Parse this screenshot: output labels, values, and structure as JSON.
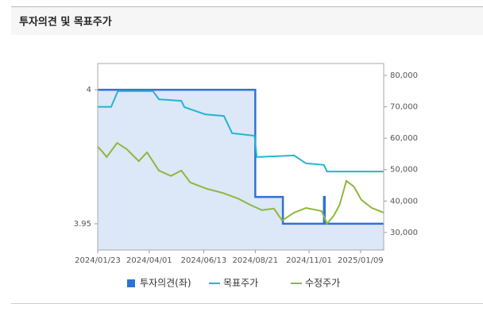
{
  "header": {
    "title": "투자의견 및 목표주가"
  },
  "chart_data": {
    "type": "line",
    "xlim": [
      "2024/01/23",
      "2025/02/09"
    ],
    "xticks": [
      "2024/01/23",
      "2024/04/01",
      "2024/06/13",
      "2024/08/21",
      "2024/11/01",
      "2025/01/09"
    ],
    "ylim": [
      3.9402,
      4.0098
    ],
    "yticks": [
      3.95,
      4
    ],
    "y2lim": [
      24400,
      83800
    ],
    "y2ticks": [
      {
        "value": 30000,
        "label": "30,000"
      },
      {
        "value": 40000,
        "label": "40,000"
      },
      {
        "value": 50000,
        "label": "50,000"
      },
      {
        "value": 60000,
        "label": "60,000"
      },
      {
        "value": 70000,
        "label": "70,000"
      },
      {
        "value": 80000,
        "label": "80,000"
      }
    ],
    "series": [
      {
        "name": "투자의견(좌)",
        "color": "#2f72d6",
        "fill": "#dce7f7",
        "axis": "y",
        "x": [
          "2024/01/23",
          "2024/08/21",
          "2024/08/21",
          "2024/09/27",
          "2024/09/27",
          "2024/11/21",
          "2024/11/21",
          "2024/11/22",
          "2024/11/22",
          "2025/02/09"
        ],
        "values": [
          4,
          4,
          3.96,
          3.96,
          3.95,
          3.95,
          3.96,
          3.96,
          3.95,
          3.95
        ]
      },
      {
        "name": "목표주가",
        "color": "#21b6cf",
        "axis": "y2",
        "x": [
          "2024/01/23",
          "2024/02/10",
          "2024/02/19",
          "2024/04/06",
          "2024/04/14",
          "2024/05/14",
          "2024/05/18",
          "2024/06/15",
          "2024/07/10",
          "2024/07/21",
          "2024/08/20",
          "2024/08/23",
          "2024/10/12",
          "2024/10/28",
          "2024/11/21",
          "2024/11/25",
          "2025/02/09"
        ],
        "values": [
          70000,
          70000,
          75000,
          75000,
          72400,
          71900,
          69900,
          67600,
          67100,
          61600,
          60800,
          54000,
          54500,
          52000,
          51500,
          49400,
          49400
        ]
      },
      {
        "name": "수정주가",
        "color": "#8db83c",
        "axis": "y2",
        "x": [
          "2024/01/23",
          "2024/01/30",
          "2024/02/04",
          "2024/02/18",
          "2024/03/02",
          "2024/03/18",
          "2024/03/29",
          "2024/04/14",
          "2024/04/30",
          "2024/05/14",
          "2024/05/26",
          "2024/06/17",
          "2024/07/08",
          "2024/07/29",
          "2024/08/14",
          "2024/08/30",
          "2024/09/15",
          "2024/09/26",
          "2024/10/12",
          "2024/10/28",
          "2024/11/18",
          "2024/11/25",
          "2024/12/04",
          "2024/12/12",
          "2024/12/21",
          "2024/12/31",
          "2025/01/10",
          "2025/01/24",
          "2025/02/09"
        ],
        "values": [
          57300,
          55500,
          54000,
          58500,
          56500,
          52700,
          55500,
          49700,
          48000,
          49700,
          45900,
          43900,
          42600,
          40800,
          38800,
          37100,
          37600,
          33800,
          36300,
          37800,
          36800,
          32800,
          35300,
          38800,
          46400,
          44600,
          40400,
          37800,
          36300
        ]
      }
    ]
  }
}
